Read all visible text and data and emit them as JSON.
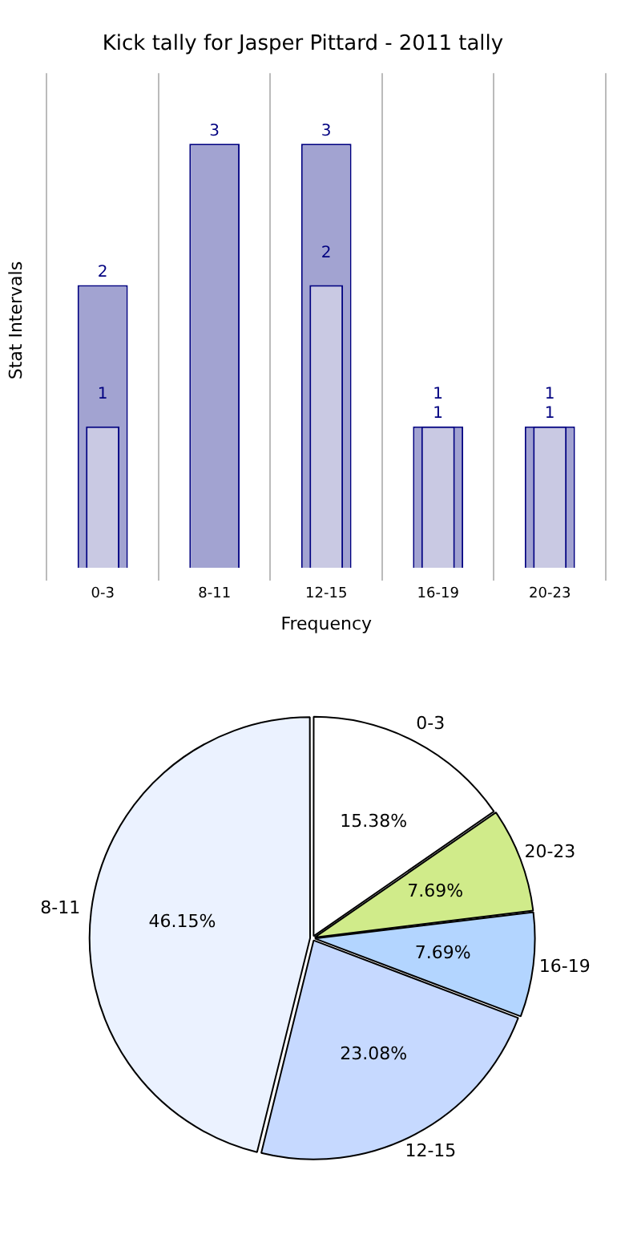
{
  "chart_data": [
    {
      "type": "bar",
      "title": "Kick tally for Jasper Pittard - 2011 tally",
      "xlabel": "Frequency",
      "ylabel": "Stat Intervals",
      "categories": [
        "0-3",
        "8-11",
        "12-15",
        "16-19",
        "20-23"
      ],
      "series": [
        {
          "color": "#a2a3d1",
          "values": [
            2,
            3,
            3,
            1,
            1
          ]
        },
        {
          "color": "#c9c9e3",
          "values": [
            1,
            null,
            2,
            1,
            1
          ]
        }
      ],
      "data_labels": true,
      "grid": "x",
      "legend": false
    },
    {
      "type": "pie",
      "categories": [
        "0-3",
        "20-23",
        "16-19",
        "12-15",
        "8-11"
      ],
      "values": [
        15.38,
        7.69,
        7.69,
        23.08,
        46.15
      ],
      "value_labels": [
        "15.38%",
        "7.69%",
        "7.69%",
        "23.08%",
        "46.15%"
      ],
      "colors": [
        "#ffffff",
        "#d0eb8a",
        "#b3d5ff",
        "#c6d9ff",
        "#ebf2ff"
      ],
      "legend": false
    }
  ]
}
